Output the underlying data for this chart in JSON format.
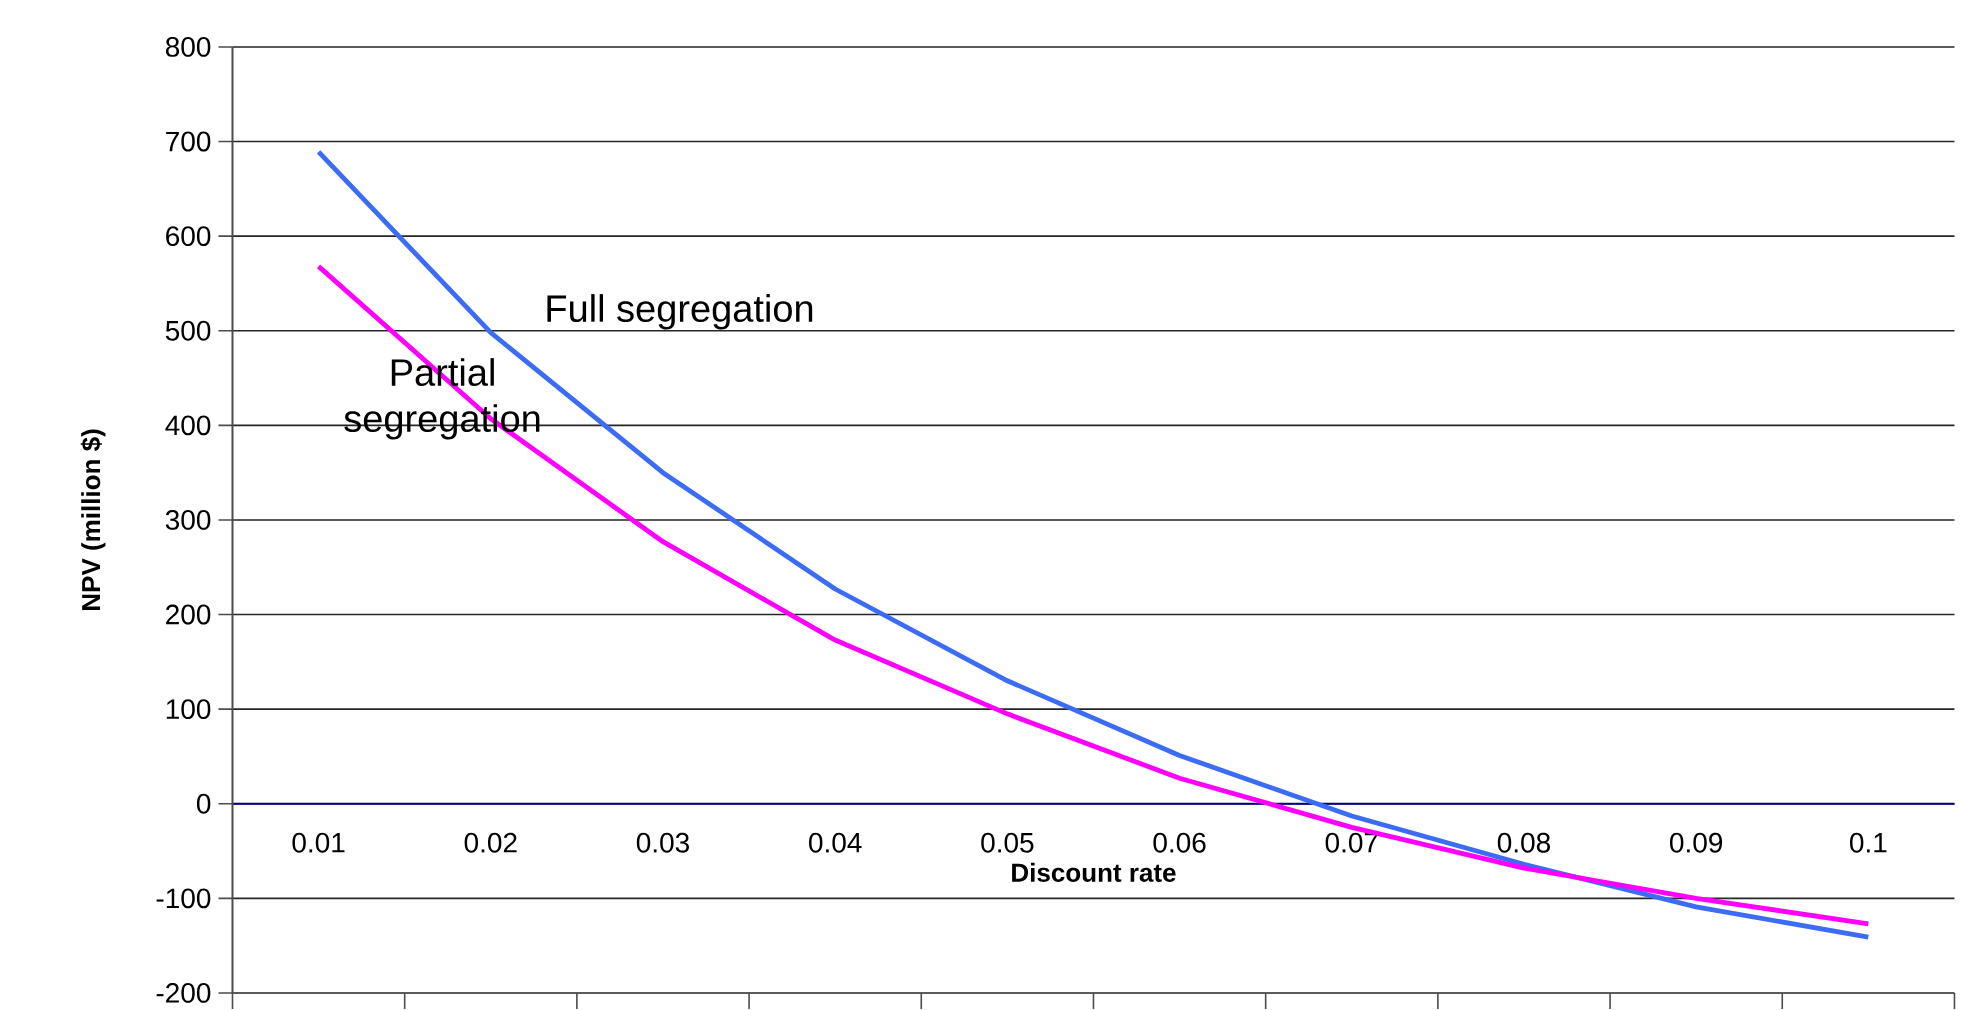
{
  "chart_data": {
    "type": "line",
    "categories": [
      "0.01",
      "0.02",
      "0.03",
      "0.04",
      "0.05",
      "0.06",
      "0.07",
      "0.08",
      "0.09",
      "0.1"
    ],
    "series": [
      {
        "name": "Full segregation",
        "color": "#3c6cf5",
        "values": [
          689,
          498,
          350,
          227,
          130,
          51,
          -13,
          -64,
          -109,
          -141
        ]
      },
      {
        "name": "Partial segregation",
        "color": "#ff00ff",
        "values": [
          568,
          407,
          277,
          173,
          95,
          27,
          -25,
          -68,
          -100,
          -127
        ]
      }
    ],
    "xlabel": "Discount rate",
    "ylabel": "NPV (million $)",
    "ylim": [
      -200,
      800
    ],
    "yticks": [
      -200,
      -100,
      0,
      100,
      200,
      300,
      400,
      500,
      600,
      700,
      800
    ],
    "grid": "y"
  }
}
